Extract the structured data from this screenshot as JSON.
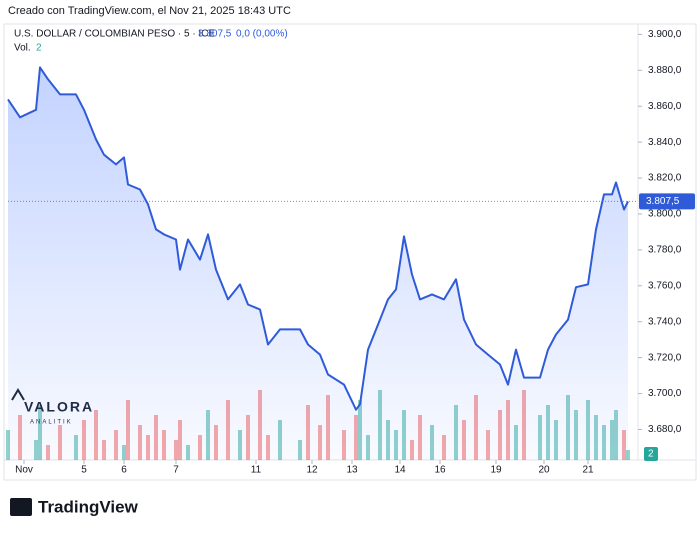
{
  "chart_data": {
    "type": "line",
    "created": "Creado con TradingView.com, el Nov 21, 2025 18:43 UTC",
    "symbol": "U.S. DOLLAR / COLOMBIAN PESO · 5 · ICE",
    "last_price_label": "3.807,5",
    "change": "0,0 (0,00%)",
    "brand": "TradingView",
    "watermark": "VALORA",
    "watermark_sub": "ANALITIK",
    "x": [
      0,
      3,
      7,
      8,
      10,
      13,
      17,
      19,
      22,
      24,
      27,
      29,
      30,
      33,
      35,
      37,
      39,
      42,
      43,
      45,
      48,
      50,
      52,
      55,
      58,
      60,
      63,
      65,
      68,
      73,
      75,
      78,
      80,
      84,
      87,
      88,
      90,
      93,
      95,
      97,
      99,
      101,
      103,
      106,
      109,
      112,
      114,
      117,
      120,
      123,
      125,
      127,
      129,
      133,
      135,
      137,
      140,
      142,
      145,
      147,
      149,
      151,
      152,
      154,
      155
    ],
    "xlim": [
      0,
      156
    ],
    "xticks": [
      {
        "value": 4,
        "label": "Nov"
      },
      {
        "value": 19,
        "label": "5"
      },
      {
        "value": 29,
        "label": "6"
      },
      {
        "value": 42,
        "label": "7"
      },
      {
        "value": 62,
        "label": "11"
      },
      {
        "value": 76,
        "label": "12"
      },
      {
        "value": 86,
        "label": "13"
      },
      {
        "value": 98,
        "label": "14"
      },
      {
        "value": 108,
        "label": "16"
      },
      {
        "value": 122,
        "label": "19"
      },
      {
        "value": 134,
        "label": "20"
      },
      {
        "value": 145,
        "label": "21"
      }
    ],
    "series": [
      {
        "name": "USDCOP",
        "color": "#2f5bd9",
        "values": [
          3863.8,
          3853.8,
          3858,
          3881.6,
          3875,
          3866.6,
          3866.6,
          3858,
          3841.5,
          3833,
          3827.6,
          3831.5,
          3816.4,
          3813.6,
          3805.3,
          3791.4,
          3788.6,
          3785.8,
          3769,
          3785.8,
          3774.6,
          3788.6,
          3769,
          3752.4,
          3760.8,
          3749.6,
          3746.8,
          3727.3,
          3735.7,
          3735.7,
          3727.3,
          3721.7,
          3710.6,
          3705,
          3691,
          3694,
          3724.5,
          3741.2,
          3752.4,
          3758,
          3787.5,
          3766.3,
          3752.4,
          3755.2,
          3752.4,
          3763.6,
          3741.2,
          3727.3,
          3721.7,
          3716.2,
          3705,
          3724.5,
          3708.9,
          3708.9,
          3724.5,
          3732.9,
          3741.2,
          3759.2,
          3760.8,
          3791.4,
          3810.9,
          3810.9,
          3817.5,
          3802.5,
          3807
        ]
      }
    ],
    "ylim": [
      3663,
      3908
    ],
    "yticks": [
      {
        "value": 3900,
        "label": "3.900,0"
      },
      {
        "value": 3880,
        "label": "3.880,0"
      },
      {
        "value": 3860,
        "label": "3.860,0"
      },
      {
        "value": 3840,
        "label": "3.840,0"
      },
      {
        "value": 3820,
        "label": "3.820,0"
      },
      {
        "value": 3800,
        "label": "3.800,0"
      },
      {
        "value": 3780,
        "label": "3.780,0"
      },
      {
        "value": 3760,
        "label": "3.760,0"
      },
      {
        "value": 3740,
        "label": "3.740,0"
      },
      {
        "value": 3720,
        "label": "3.720,0"
      },
      {
        "value": 3700,
        "label": "3.700,0"
      },
      {
        "value": 3680,
        "label": "3.680,0"
      }
    ],
    "volume": {
      "name": "Vol.",
      "up_color": "rgba(38,166,154,0.5)",
      "down_color": "rgba(239,83,80,0.5)",
      "vlim": [
        0,
        20
      ],
      "values": [
        6,
        9,
        4,
        11,
        3,
        7,
        5,
        8,
        10,
        4,
        6,
        3,
        12,
        7,
        5,
        9,
        6,
        4,
        8,
        3,
        5,
        10,
        7,
        12,
        6,
        9,
        14,
        5,
        8,
        4,
        11,
        7,
        13,
        6,
        9,
        12,
        5,
        14,
        8,
        6,
        10,
        4,
        9,
        7,
        5,
        11,
        8,
        13,
        6,
        10,
        12,
        7,
        14,
        9,
        11,
        8,
        13,
        10,
        12,
        9,
        7,
        8,
        10,
        6,
        2
      ]
    }
  }
}
